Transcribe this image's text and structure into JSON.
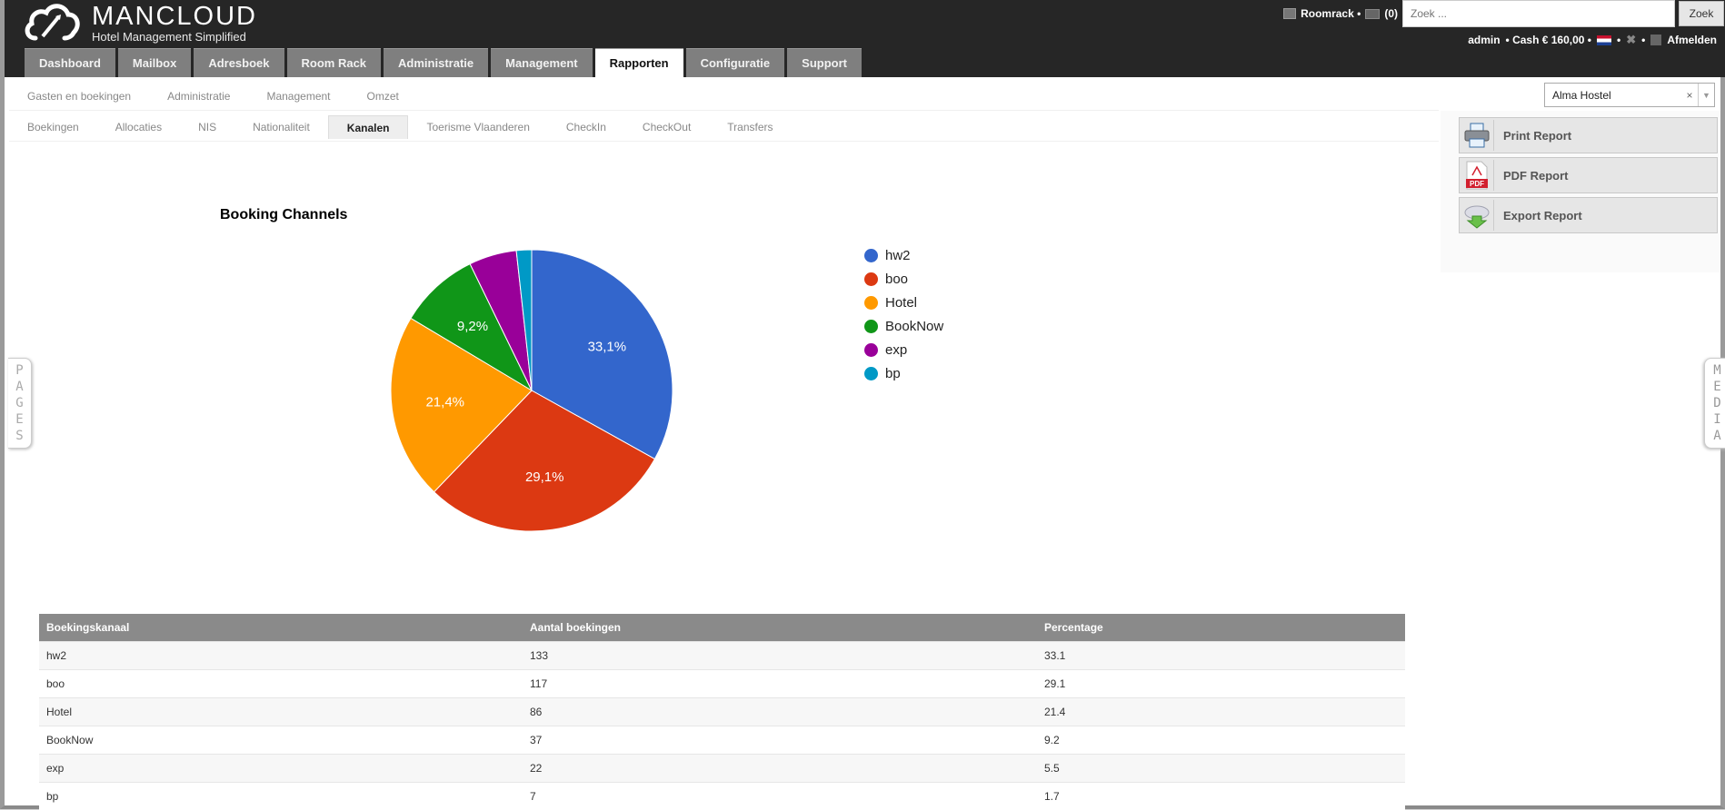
{
  "app": {
    "name": "MANCLOUD",
    "tagline": "Hotel Management Simplified"
  },
  "topbar": {
    "roomrack_label": "Roomrack •",
    "mail_count": "(0)",
    "search_placeholder": "Zoek ...",
    "search_button": "Zoek",
    "user": "admin",
    "cash_label": "• Cash € 160,00 •",
    "sep1": "•",
    "sep2": "•",
    "logout_label": "Afmelden"
  },
  "main_nav": {
    "tabs": [
      {
        "label": "Dashboard"
      },
      {
        "label": "Mailbox"
      },
      {
        "label": "Adresboek"
      },
      {
        "label": "Room Rack"
      },
      {
        "label": "Administratie"
      },
      {
        "label": "Management"
      },
      {
        "label": "Rapporten",
        "active": true
      },
      {
        "label": "Configuratie"
      },
      {
        "label": "Support"
      }
    ]
  },
  "sub_nav_1": {
    "items": [
      {
        "label": "Gasten en boekingen"
      },
      {
        "label": "Administratie"
      },
      {
        "label": "Management"
      },
      {
        "label": "Omzet"
      }
    ]
  },
  "sub_nav_2": {
    "items": [
      {
        "label": "Boekingen"
      },
      {
        "label": "Allocaties"
      },
      {
        "label": "NIS"
      },
      {
        "label": "Nationaliteit"
      },
      {
        "label": "Kanalen",
        "active": true
      },
      {
        "label": "Toerisme Vlaanderen"
      },
      {
        "label": "CheckIn"
      },
      {
        "label": "CheckOut"
      },
      {
        "label": "Transfers"
      }
    ]
  },
  "hotel_select": {
    "value": "Alma Hostel",
    "clear": "×",
    "arrow": "▼"
  },
  "report_actions": {
    "print": "Print Report",
    "pdf": "PDF Report",
    "export": "Export Report"
  },
  "side_tabs": {
    "left": [
      "P",
      "A",
      "G",
      "E",
      "S"
    ],
    "right": [
      "M",
      "E",
      "D",
      "I",
      "A"
    ]
  },
  "chart_data": {
    "type": "pie",
    "title": "Booking Channels",
    "categories": [
      "hw2",
      "boo",
      "Hotel",
      "BookNow",
      "exp",
      "bp"
    ],
    "values": [
      133,
      117,
      86,
      37,
      22,
      7
    ],
    "percentages": [
      33.1,
      29.1,
      21.4,
      9.2,
      5.5,
      1.7
    ],
    "slice_labels": [
      "33,1%",
      "29,1%",
      "21,4%",
      "9,2%",
      "",
      ""
    ],
    "colors": [
      "#3366cc",
      "#dc3912",
      "#ff9900",
      "#109618",
      "#990099",
      "#0099c6"
    ],
    "legend_position": "right"
  },
  "table": {
    "headers": [
      "Boekingskanaal",
      "Aantal boekingen",
      "Percentage"
    ],
    "rows": [
      [
        "hw2",
        "133",
        "33.1"
      ],
      [
        "boo",
        "117",
        "29.1"
      ],
      [
        "Hotel",
        "86",
        "21.4"
      ],
      [
        "BookNow",
        "37",
        "9.2"
      ],
      [
        "exp",
        "22",
        "5.5"
      ],
      [
        "bp",
        "7",
        "1.7"
      ]
    ]
  }
}
